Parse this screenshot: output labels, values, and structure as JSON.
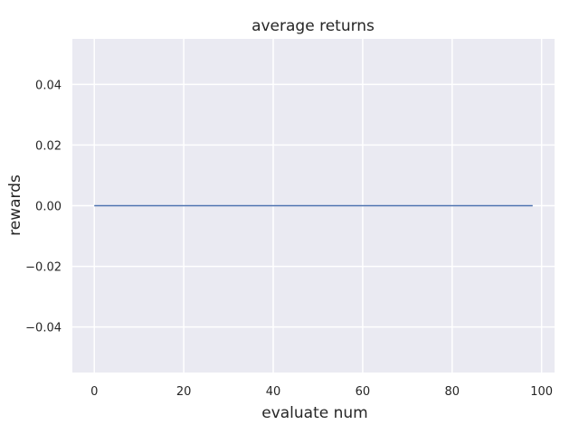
{
  "chart_data": {
    "type": "line",
    "title": "average returns",
    "xlabel": "evaluate num",
    "ylabel": "rewards",
    "xlim": [
      -4.9,
      102.9
    ],
    "ylim": [
      -0.055,
      0.055
    ],
    "xticks": [
      0,
      20,
      40,
      60,
      80,
      100
    ],
    "xtick_labels": [
      "0",
      "20",
      "40",
      "60",
      "80",
      "100"
    ],
    "yticks": [
      0.04,
      0.02,
      0.0,
      -0.02,
      -0.04
    ],
    "ytick_labels": [
      "0.04",
      "0.02",
      "0.00",
      "−0.02",
      "−0.04"
    ],
    "grid": true,
    "series": [
      {
        "color": "#4c72b0",
        "x": [
          0,
          98
        ],
        "y": [
          0,
          0
        ]
      }
    ],
    "colors": {
      "background": "#eaeaf2",
      "grid": "#ffffff",
      "line": "#4c72b0"
    }
  }
}
